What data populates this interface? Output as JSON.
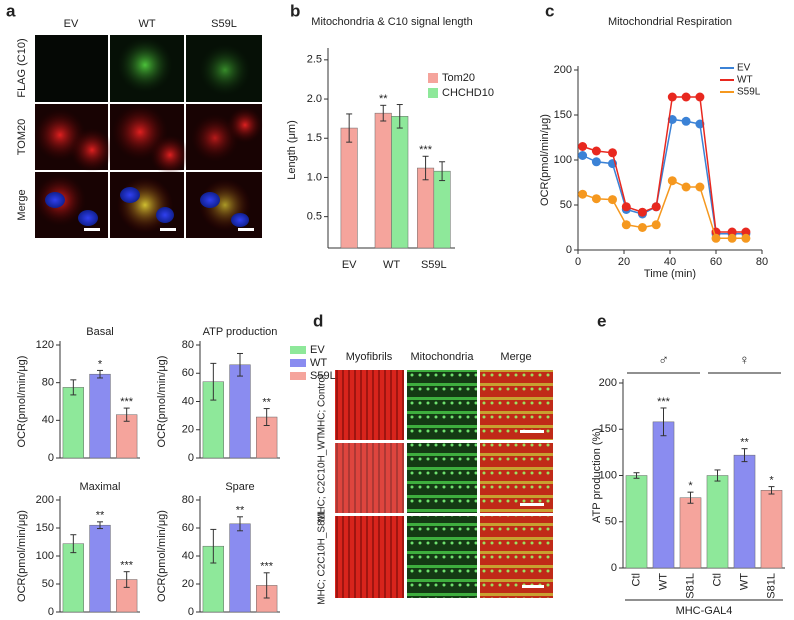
{
  "panel_labels": [
    "a",
    "b",
    "c",
    "d",
    "e"
  ],
  "panel_a": {
    "columns": [
      "EV",
      "WT",
      "S59L"
    ],
    "rows": [
      "FLAG (C10)",
      "TOM20",
      "Merge"
    ]
  },
  "panel_d": {
    "columns": [
      "Myofibrils",
      "Mitochondria",
      "Merge"
    ],
    "rows": [
      "MHC; Control",
      "MHC; C2C10H_WT",
      "MHC; C2C10H_S81L"
    ]
  },
  "chart_data": [
    {
      "type": "bar",
      "title": "Mitochondria & C10 signal length",
      "ylabel": "Length (μm)",
      "categories": [
        "EV",
        "WT",
        "S59L"
      ],
      "series": [
        {
          "name": "Tom20",
          "color": "#f5a49c",
          "values": [
            1.63,
            1.82,
            1.12
          ],
          "errors": [
            0.18,
            0.1,
            0.15
          ],
          "annotations": [
            null,
            "**",
            "***"
          ]
        },
        {
          "name": "CHCHD10",
          "color": "#8ee89a",
          "values": [
            null,
            1.78,
            1.08
          ],
          "errors": [
            null,
            0.15,
            0.12
          ]
        }
      ],
      "ylim": [
        0.1,
        2.6
      ],
      "yticks": [
        0.5,
        {
          "value": 1,
          "label": "1.0"
        },
        1.5,
        {
          "value": 2,
          "label": "2.0"
        },
        2.5
      ]
    },
    {
      "type": "line",
      "title": "Mitochondrial Respiration",
      "xlabel": "Time (min)",
      "ylabel": "OCR(pmol/min/μg)",
      "x": [
        2,
        8,
        15,
        21,
        28,
        34,
        41,
        47,
        53,
        60,
        67,
        73
      ],
      "series": [
        {
          "name": "EV",
          "color": "#3b82d6",
          "values": [
            105,
            98,
            96,
            45,
            40,
            48,
            145,
            143,
            140,
            18,
            18,
            18
          ]
        },
        {
          "name": "WT",
          "color": "#e8281f",
          "values": [
            115,
            110,
            108,
            48,
            42,
            48,
            170,
            170,
            170,
            20,
            20,
            20
          ]
        },
        {
          "name": "S59L",
          "color": "#f5981f",
          "values": [
            62,
            57,
            56,
            28,
            25,
            28,
            77,
            70,
            70,
            13,
            13,
            13
          ]
        }
      ],
      "xlim": [
        0,
        80
      ],
      "xticks": [
        0,
        20,
        40,
        60,
        80
      ],
      "ylim": [
        0,
        200
      ],
      "yticks": [
        0,
        50,
        100,
        150,
        200
      ],
      "legend": "upper right"
    },
    {
      "type": "bar",
      "title": "Basal",
      "ylabel": "OCR(pmol/min/μg)",
      "categories": [
        null,
        null,
        null
      ],
      "colors": [
        "#8ee89a",
        "#8a8cf0",
        "#f5a49c"
      ],
      "values": [
        75,
        89,
        46
      ],
      "errors": [
        8,
        4,
        7
      ],
      "annotations": [
        null,
        "*",
        "***"
      ],
      "ylim": [
        0,
        120
      ],
      "yticks": [
        0,
        40,
        80,
        120
      ]
    },
    {
      "type": "bar",
      "title": "ATP production",
      "ylabel": "OCR(pmol/min/μg)",
      "categories": [
        null,
        null,
        null
      ],
      "colors": [
        "#8ee89a",
        "#8a8cf0",
        "#f5a49c"
      ],
      "values": [
        54,
        66,
        29
      ],
      "errors": [
        13,
        8,
        6
      ],
      "annotations": [
        null,
        null,
        "**"
      ],
      "ylim": [
        0,
        80
      ],
      "yticks": [
        0,
        20,
        40,
        60,
        80
      ],
      "legend": [
        "EV",
        "WT",
        "S59L"
      ]
    },
    {
      "type": "bar",
      "title": "Maximal",
      "ylabel": "OCR(pmol/min/μg)",
      "categories": [
        null,
        null,
        null
      ],
      "colors": [
        "#8ee89a",
        "#8a8cf0",
        "#f5a49c"
      ],
      "values": [
        122,
        155,
        58
      ],
      "errors": [
        16,
        6,
        14
      ],
      "annotations": [
        null,
        "**",
        "***"
      ],
      "ylim": [
        0,
        200
      ],
      "yticks": [
        0,
        50,
        100,
        150,
        200
      ]
    },
    {
      "type": "bar",
      "title": "Spare",
      "ylabel": "OCR(pmol/min/μg)",
      "categories": [
        null,
        null,
        null
      ],
      "colors": [
        "#8ee89a",
        "#8a8cf0",
        "#f5a49c"
      ],
      "values": [
        47,
        63,
        19
      ],
      "errors": [
        12,
        5,
        9
      ],
      "annotations": [
        null,
        "**",
        "***"
      ],
      "ylim": [
        0,
        80
      ],
      "yticks": [
        0,
        20,
        40,
        60,
        80
      ]
    },
    {
      "type": "bar",
      "ylabel": "ATP production (%)",
      "xlabel": "MHC-GAL4",
      "group_labels": [
        "♂",
        "♀"
      ],
      "categories": [
        "Ctl",
        "WT",
        "S81L",
        "Ctl",
        "WT",
        "S81L"
      ],
      "colors": [
        "#8ee89a",
        "#8a8cf0",
        "#f5a49c",
        "#8ee89a",
        "#8a8cf0",
        "#f5a49c"
      ],
      "values": [
        100,
        158,
        76,
        100,
        122,
        84
      ],
      "errors": [
        3,
        15,
        6,
        6,
        7,
        4
      ],
      "annotations": [
        null,
        "***",
        "*",
        null,
        "**",
        "*"
      ],
      "ylim": [
        0,
        200
      ],
      "yticks": [
        0,
        50,
        100,
        150,
        200
      ]
    }
  ]
}
